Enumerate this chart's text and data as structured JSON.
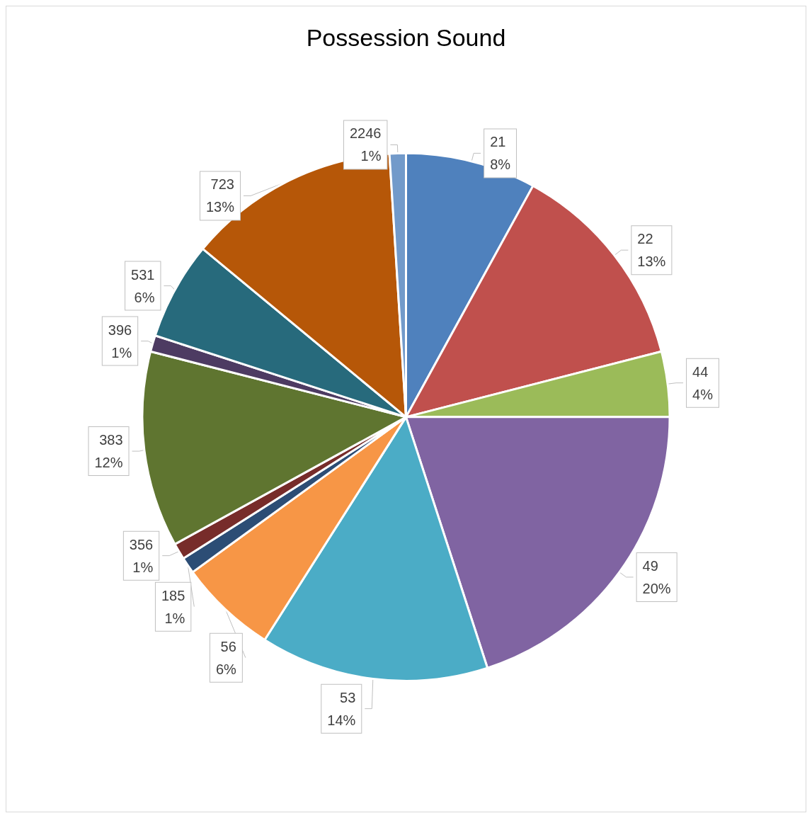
{
  "chart_data": {
    "type": "pie",
    "title": "Possession Sound",
    "categories": [
      "21",
      "22",
      "44",
      "49",
      "53",
      "56",
      "185",
      "356",
      "383",
      "396",
      "531",
      "723",
      "2246"
    ],
    "values": [
      8,
      13,
      4,
      20,
      14,
      6,
      1,
      1,
      12,
      1,
      6,
      13,
      1
    ],
    "colors": [
      "#4f81bd",
      "#c0504d",
      "#9bbb59",
      "#8064a2",
      "#4bacc6",
      "#f79646",
      "#2c4d75",
      "#772c2a",
      "#5f7530",
      "#4d3b62",
      "#276a7c",
      "#b65708",
      "#729aca"
    ],
    "value_labels": [
      "8%",
      "13%",
      "4%",
      "20%",
      "14%",
      "6%",
      "1%",
      "1%",
      "12%",
      "1%",
      "6%",
      "13%",
      "1%"
    ],
    "legend": false
  }
}
